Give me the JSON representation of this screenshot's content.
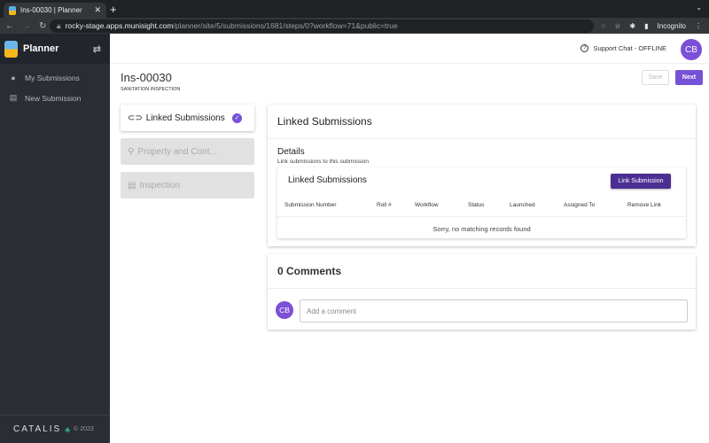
{
  "browser": {
    "tab_title": "Ins-00030 | Planner",
    "url_host": "rocky-stage.apps.munisight.com",
    "url_path": "/planner/site/5/submissions/1681/steps/0?workflow=71&public=true",
    "profile": "Incognito"
  },
  "sidebar": {
    "app_name": "Planner",
    "items": [
      {
        "label": "My Submissions",
        "icon": "person-icon"
      },
      {
        "label": "New Submission",
        "icon": "document-add-icon"
      }
    ],
    "footer_brand": "CATALIS",
    "footer_copy": "© 2023"
  },
  "header": {
    "support": "Support Chat - OFFLINE",
    "avatar": "CB"
  },
  "page": {
    "title": "Ins-00030",
    "subtitle": "SANITATION INSPECTION",
    "save": "Save",
    "next": "Next"
  },
  "steps": [
    {
      "label": "Linked Submissions",
      "state": "complete"
    },
    {
      "label": "Property and Cont...",
      "state": "disabled"
    },
    {
      "label": "Inspection",
      "state": "disabled"
    }
  ],
  "linked": {
    "title": "Linked Submissions",
    "details_title": "Details",
    "details_desc": "Link submissions to this submission",
    "table_title": "Linked Submissions",
    "link_button": "Link Submission",
    "columns": [
      "Submission Number",
      "Roll #",
      "Workflow",
      "Status",
      "Launched",
      "Assigned To",
      "Remove Link"
    ],
    "empty": "Sorry, no matching records found"
  },
  "comments": {
    "title": "0 Comments",
    "avatar": "CB",
    "placeholder": "Add a comment"
  },
  "colors": {
    "accent": "#7652d6",
    "link_button": "#4b2f92",
    "sidebar": "#2a2d34"
  }
}
